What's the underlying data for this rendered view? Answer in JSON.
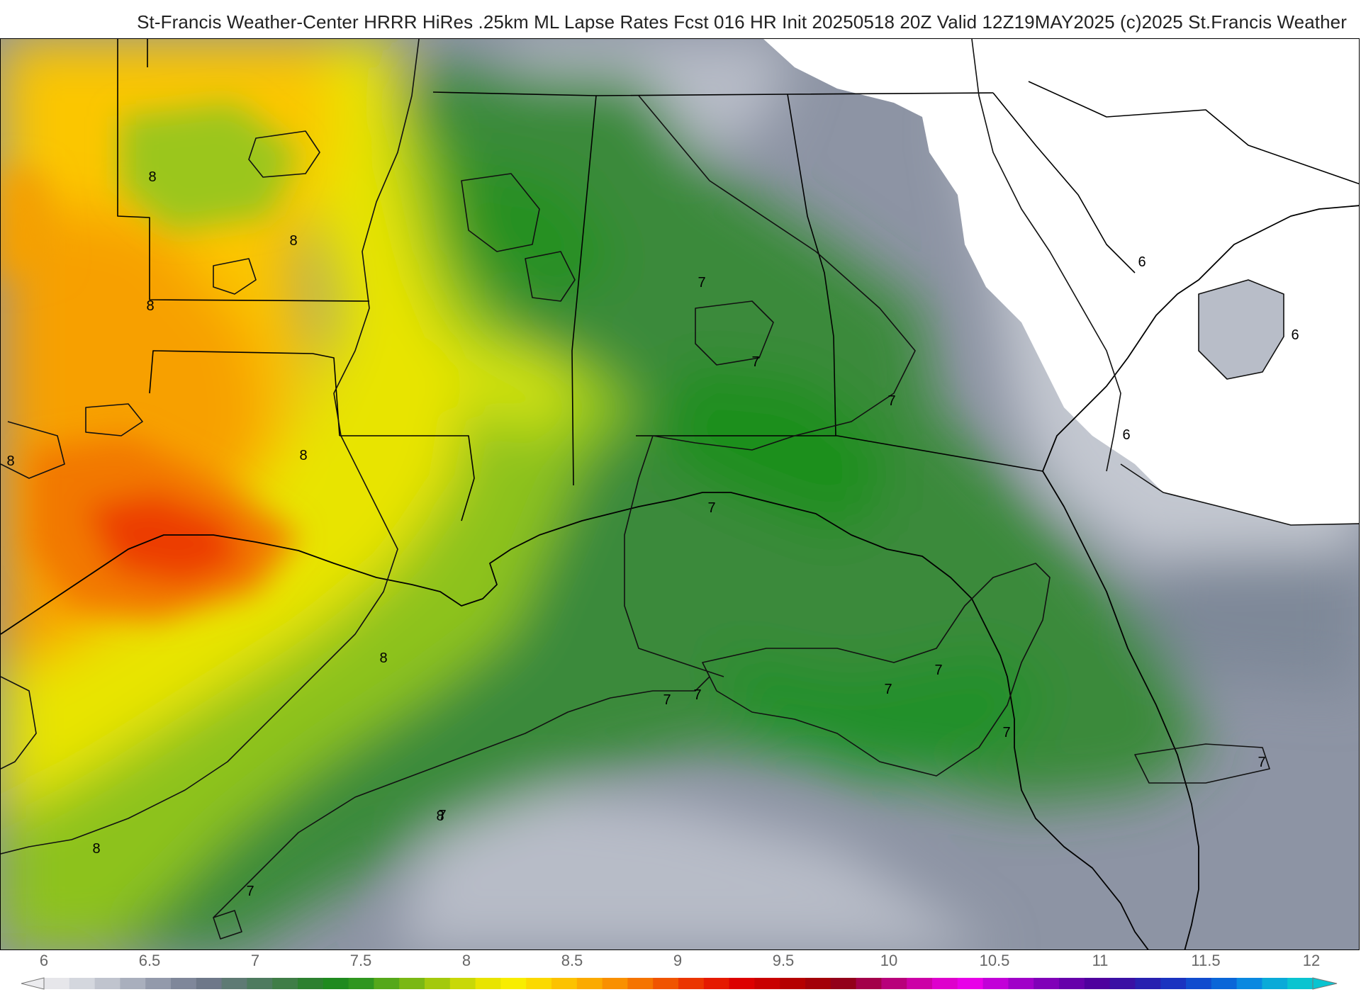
{
  "title": "St-Francis Weather-Center HRRR HiRes .25km ML Lapse Rates  Fcst 016 HR Init 20250518 20Z  Valid 12Z19MAY2025     (c)2025 St.Francis Weather",
  "legend": {
    "ticks": [
      "6",
      "6.5",
      "7",
      "7.5",
      "8",
      "8.5",
      "9",
      "9.5",
      "10",
      "10.5",
      "11",
      "11.5",
      "12"
    ],
    "colors": [
      "#e6e6ea",
      "#d4d7de",
      "#c0c4ce",
      "#a9afbd",
      "#939aab",
      "#7f879a",
      "#6e7889",
      "#5e7a74",
      "#4d7b5f",
      "#3f7d47",
      "#2d8030",
      "#1f8a1f",
      "#2f961f",
      "#55a81a",
      "#7ab814",
      "#a3c90d",
      "#c8d808",
      "#e8e400",
      "#f8ed00",
      "#fbd900",
      "#fcc200",
      "#fbaa00",
      "#f99000",
      "#f57400",
      "#f05400",
      "#eb3500",
      "#e51a00",
      "#dc0000",
      "#c90000",
      "#b50000",
      "#a30008",
      "#93001a",
      "#a3004a",
      "#b8007a",
      "#cc00a6",
      "#de00cc",
      "#e800e8",
      "#c200d8",
      "#a000c8",
      "#8000b8",
      "#6600aa",
      "#4f009e",
      "#3a10a4",
      "#2820b0",
      "#1a33c0",
      "#104cce",
      "#0a66d8",
      "#0a88e0",
      "#0aaad8",
      "#0ac4d0"
    ]
  },
  "map": {
    "contour_labels": [
      "8",
      "8",
      "8",
      "8",
      "8",
      "8",
      "8",
      "8",
      "7",
      "7",
      "7",
      "7",
      "7",
      "7",
      "7",
      "7",
      "7",
      "7",
      "7",
      "7",
      "6",
      "6",
      "6"
    ]
  }
}
